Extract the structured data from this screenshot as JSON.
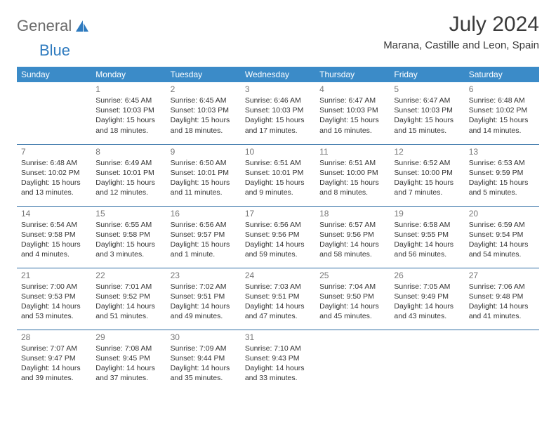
{
  "brand": {
    "part1": "General",
    "part2": "Blue"
  },
  "header": {
    "month_title": "July 2024",
    "location": "Marana, Castille and Leon, Spain"
  },
  "day_names": [
    "Sunday",
    "Monday",
    "Tuesday",
    "Wednesday",
    "Thursday",
    "Friday",
    "Saturday"
  ],
  "colors": {
    "header_bg": "#3b8bc8",
    "header_text": "#ffffff",
    "rule": "#2f6ea5",
    "brand_gray": "#6b6b6b",
    "brand_blue": "#2f7bbf",
    "daynum": "#777777",
    "body_text": "#333333",
    "page_bg": "#ffffff"
  },
  "fonts": {
    "month_title_pt": 30,
    "location_pt": 15,
    "weekday_pt": 12,
    "daynum_pt": 12,
    "body_pt": 10.5
  },
  "weeks": [
    [
      null,
      {
        "n": "1",
        "sr": "Sunrise: 6:45 AM",
        "ss": "Sunset: 10:03 PM",
        "d1": "Daylight: 15 hours",
        "d2": "and 18 minutes."
      },
      {
        "n": "2",
        "sr": "Sunrise: 6:45 AM",
        "ss": "Sunset: 10:03 PM",
        "d1": "Daylight: 15 hours",
        "d2": "and 18 minutes."
      },
      {
        "n": "3",
        "sr": "Sunrise: 6:46 AM",
        "ss": "Sunset: 10:03 PM",
        "d1": "Daylight: 15 hours",
        "d2": "and 17 minutes."
      },
      {
        "n": "4",
        "sr": "Sunrise: 6:47 AM",
        "ss": "Sunset: 10:03 PM",
        "d1": "Daylight: 15 hours",
        "d2": "and 16 minutes."
      },
      {
        "n": "5",
        "sr": "Sunrise: 6:47 AM",
        "ss": "Sunset: 10:03 PM",
        "d1": "Daylight: 15 hours",
        "d2": "and 15 minutes."
      },
      {
        "n": "6",
        "sr": "Sunrise: 6:48 AM",
        "ss": "Sunset: 10:02 PM",
        "d1": "Daylight: 15 hours",
        "d2": "and 14 minutes."
      }
    ],
    [
      {
        "n": "7",
        "sr": "Sunrise: 6:48 AM",
        "ss": "Sunset: 10:02 PM",
        "d1": "Daylight: 15 hours",
        "d2": "and 13 minutes."
      },
      {
        "n": "8",
        "sr": "Sunrise: 6:49 AM",
        "ss": "Sunset: 10:01 PM",
        "d1": "Daylight: 15 hours",
        "d2": "and 12 minutes."
      },
      {
        "n": "9",
        "sr": "Sunrise: 6:50 AM",
        "ss": "Sunset: 10:01 PM",
        "d1": "Daylight: 15 hours",
        "d2": "and 11 minutes."
      },
      {
        "n": "10",
        "sr": "Sunrise: 6:51 AM",
        "ss": "Sunset: 10:01 PM",
        "d1": "Daylight: 15 hours",
        "d2": "and 9 minutes."
      },
      {
        "n": "11",
        "sr": "Sunrise: 6:51 AM",
        "ss": "Sunset: 10:00 PM",
        "d1": "Daylight: 15 hours",
        "d2": "and 8 minutes."
      },
      {
        "n": "12",
        "sr": "Sunrise: 6:52 AM",
        "ss": "Sunset: 10:00 PM",
        "d1": "Daylight: 15 hours",
        "d2": "and 7 minutes."
      },
      {
        "n": "13",
        "sr": "Sunrise: 6:53 AM",
        "ss": "Sunset: 9:59 PM",
        "d1": "Daylight: 15 hours",
        "d2": "and 5 minutes."
      }
    ],
    [
      {
        "n": "14",
        "sr": "Sunrise: 6:54 AM",
        "ss": "Sunset: 9:58 PM",
        "d1": "Daylight: 15 hours",
        "d2": "and 4 minutes."
      },
      {
        "n": "15",
        "sr": "Sunrise: 6:55 AM",
        "ss": "Sunset: 9:58 PM",
        "d1": "Daylight: 15 hours",
        "d2": "and 3 minutes."
      },
      {
        "n": "16",
        "sr": "Sunrise: 6:56 AM",
        "ss": "Sunset: 9:57 PM",
        "d1": "Daylight: 15 hours",
        "d2": "and 1 minute."
      },
      {
        "n": "17",
        "sr": "Sunrise: 6:56 AM",
        "ss": "Sunset: 9:56 PM",
        "d1": "Daylight: 14 hours",
        "d2": "and 59 minutes."
      },
      {
        "n": "18",
        "sr": "Sunrise: 6:57 AM",
        "ss": "Sunset: 9:56 PM",
        "d1": "Daylight: 14 hours",
        "d2": "and 58 minutes."
      },
      {
        "n": "19",
        "sr": "Sunrise: 6:58 AM",
        "ss": "Sunset: 9:55 PM",
        "d1": "Daylight: 14 hours",
        "d2": "and 56 minutes."
      },
      {
        "n": "20",
        "sr": "Sunrise: 6:59 AM",
        "ss": "Sunset: 9:54 PM",
        "d1": "Daylight: 14 hours",
        "d2": "and 54 minutes."
      }
    ],
    [
      {
        "n": "21",
        "sr": "Sunrise: 7:00 AM",
        "ss": "Sunset: 9:53 PM",
        "d1": "Daylight: 14 hours",
        "d2": "and 53 minutes."
      },
      {
        "n": "22",
        "sr": "Sunrise: 7:01 AM",
        "ss": "Sunset: 9:52 PM",
        "d1": "Daylight: 14 hours",
        "d2": "and 51 minutes."
      },
      {
        "n": "23",
        "sr": "Sunrise: 7:02 AM",
        "ss": "Sunset: 9:51 PM",
        "d1": "Daylight: 14 hours",
        "d2": "and 49 minutes."
      },
      {
        "n": "24",
        "sr": "Sunrise: 7:03 AM",
        "ss": "Sunset: 9:51 PM",
        "d1": "Daylight: 14 hours",
        "d2": "and 47 minutes."
      },
      {
        "n": "25",
        "sr": "Sunrise: 7:04 AM",
        "ss": "Sunset: 9:50 PM",
        "d1": "Daylight: 14 hours",
        "d2": "and 45 minutes."
      },
      {
        "n": "26",
        "sr": "Sunrise: 7:05 AM",
        "ss": "Sunset: 9:49 PM",
        "d1": "Daylight: 14 hours",
        "d2": "and 43 minutes."
      },
      {
        "n": "27",
        "sr": "Sunrise: 7:06 AM",
        "ss": "Sunset: 9:48 PM",
        "d1": "Daylight: 14 hours",
        "d2": "and 41 minutes."
      }
    ],
    [
      {
        "n": "28",
        "sr": "Sunrise: 7:07 AM",
        "ss": "Sunset: 9:47 PM",
        "d1": "Daylight: 14 hours",
        "d2": "and 39 minutes."
      },
      {
        "n": "29",
        "sr": "Sunrise: 7:08 AM",
        "ss": "Sunset: 9:45 PM",
        "d1": "Daylight: 14 hours",
        "d2": "and 37 minutes."
      },
      {
        "n": "30",
        "sr": "Sunrise: 7:09 AM",
        "ss": "Sunset: 9:44 PM",
        "d1": "Daylight: 14 hours",
        "d2": "and 35 minutes."
      },
      {
        "n": "31",
        "sr": "Sunrise: 7:10 AM",
        "ss": "Sunset: 9:43 PM",
        "d1": "Daylight: 14 hours",
        "d2": "and 33 minutes."
      },
      null,
      null,
      null
    ]
  ]
}
